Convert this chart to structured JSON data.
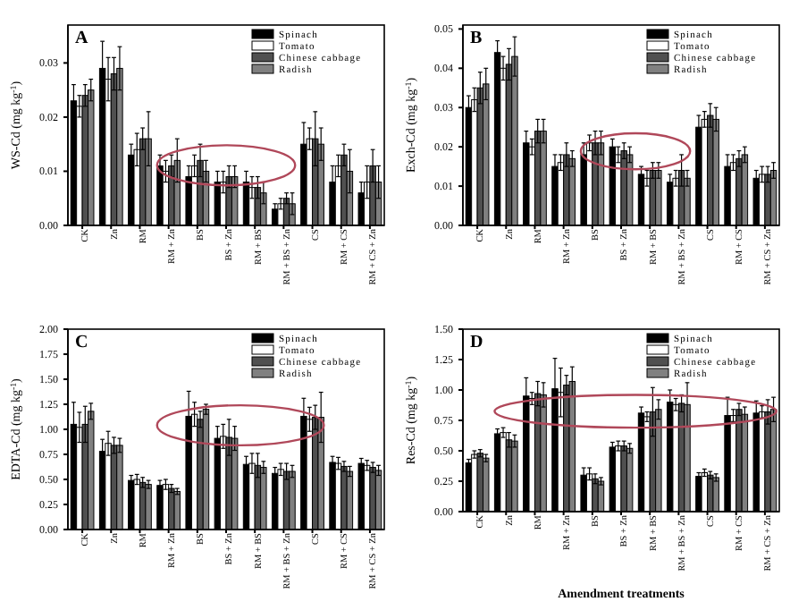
{
  "chart_data": [
    {
      "type": "bar",
      "title": "A",
      "ylabel": "WS-Cd (mg kg$^{-1}$)",
      "categories": [
        "CK",
        "Zn",
        "RM",
        "RM + Zn",
        "BS",
        "BS + Zn",
        "RM + BS",
        "RM + BS + Zn",
        "CS",
        "RM + CS",
        "RM + CS + Zn"
      ],
      "ylim": [
        0,
        0.037
      ],
      "yticks": [
        {
          "value": 0,
          "label": "0.00"
        },
        {
          "value": 0.01,
          "label": "0.01"
        },
        {
          "value": 0.02,
          "label": "0.02"
        },
        {
          "value": 0.03,
          "label": "0.03"
        }
      ],
      "legend": "top right",
      "series": [
        {
          "name": "Spinach",
          "color": "#000000",
          "values": [
            0.023,
            0.029,
            0.013,
            0.011,
            0.009,
            0.008,
            0.008,
            0.003,
            0.015,
            0.008,
            0.006
          ],
          "errors": [
            0.003,
            0.005,
            0.002,
            0.002,
            0.002,
            0.002,
            0.002,
            0.001,
            0.004,
            0.003,
            0.002
          ]
        },
        {
          "name": "Tomato",
          "color": "#ffffff",
          "values": [
            0.022,
            0.027,
            0.014,
            0.01,
            0.011,
            0.008,
            0.007,
            0.004,
            0.016,
            0.011,
            0.008
          ],
          "errors": [
            0.002,
            0.004,
            0.003,
            0.002,
            0.002,
            0.002,
            0.002,
            0.001,
            0.002,
            0.002,
            0.003
          ]
        },
        {
          "name": "Chinese cabbage",
          "color": "#505050",
          "values": [
            0.024,
            0.028,
            0.016,
            0.011,
            0.012,
            0.009,
            0.007,
            0.005,
            0.016,
            0.013,
            0.011
          ],
          "errors": [
            0.002,
            0.003,
            0.002,
            0.002,
            0.003,
            0.002,
            0.002,
            0.001,
            0.005,
            0.002,
            0.003
          ]
        },
        {
          "name": "Radish",
          "color": "#808080",
          "values": [
            0.025,
            0.029,
            0.016,
            0.012,
            0.01,
            0.009,
            0.006,
            0.004,
            0.015,
            0.01,
            0.008
          ],
          "errors": [
            0.002,
            0.004,
            0.005,
            0.004,
            0.002,
            0.002,
            0.002,
            0.002,
            0.003,
            0.004,
            0.003
          ]
        }
      ]
    },
    {
      "type": "bar",
      "title": "B",
      "ylabel": "Exch-Cd (mg kg$^{-1}$)",
      "categories": [
        "CK",
        "Zn",
        "RM",
        "RM + Zn",
        "BS",
        "BS + Zn",
        "RM + BS",
        "RM + BS + Zn",
        "CS",
        "RM + CS",
        "RM + CS + Zn"
      ],
      "ylim": [
        0,
        0.051
      ],
      "yticks": [
        {
          "value": 0,
          "label": "0.00"
        },
        {
          "value": 0.01,
          "label": "0.01"
        },
        {
          "value": 0.02,
          "label": "0.02"
        },
        {
          "value": 0.03,
          "label": "0.03"
        },
        {
          "value": 0.04,
          "label": "0.04"
        },
        {
          "value": 0.05,
          "label": "0.05"
        }
      ],
      "legend": "top right",
      "series": [
        {
          "name": "Spinach",
          "color": "#000000",
          "values": [
            0.03,
            0.044,
            0.021,
            0.015,
            0.018,
            0.02,
            0.013,
            0.011,
            0.025,
            0.015,
            0.012
          ],
          "errors": [
            0.003,
            0.003,
            0.003,
            0.003,
            0.003,
            0.002,
            0.002,
            0.002,
            0.003,
            0.003,
            0.002
          ]
        },
        {
          "name": "Tomato",
          "color": "#ffffff",
          "values": [
            0.032,
            0.04,
            0.02,
            0.016,
            0.021,
            0.018,
            0.012,
            0.012,
            0.027,
            0.016,
            0.013
          ],
          "errors": [
            0.003,
            0.003,
            0.002,
            0.002,
            0.002,
            0.002,
            0.002,
            0.002,
            0.002,
            0.002,
            0.002
          ]
        },
        {
          "name": "Chinese cabbage",
          "color": "#505050",
          "values": [
            0.035,
            0.041,
            0.024,
            0.018,
            0.021,
            0.019,
            0.014,
            0.014,
            0.028,
            0.017,
            0.013
          ],
          "errors": [
            0.004,
            0.004,
            0.003,
            0.003,
            0.003,
            0.002,
            0.002,
            0.004,
            0.003,
            0.002,
            0.002
          ]
        },
        {
          "name": "Radish",
          "color": "#808080",
          "values": [
            0.036,
            0.043,
            0.024,
            0.017,
            0.021,
            0.018,
            0.014,
            0.012,
            0.027,
            0.018,
            0.014
          ],
          "errors": [
            0.004,
            0.005,
            0.003,
            0.002,
            0.003,
            0.002,
            0.002,
            0.002,
            0.003,
            0.002,
            0.002
          ]
        }
      ]
    },
    {
      "type": "bar",
      "title": "C",
      "ylabel": "EDTA-Cd (mg kg$^{-1}$)",
      "categories": [
        "CK",
        "Zn",
        "RM",
        "RM + Zn",
        "BS",
        "BS + Zn",
        "RM + BS",
        "RM + BS + Zn",
        "CS",
        "RM + CS",
        "RM + CS + Zn"
      ],
      "ylim": [
        0,
        2
      ],
      "yticks": [
        {
          "value": 0,
          "label": "0.00"
        },
        {
          "value": 0.25,
          "label": "0.25"
        },
        {
          "value": 0.5,
          "label": "0.50"
        },
        {
          "value": 0.75,
          "label": "0.75"
        },
        {
          "value": 1,
          "label": "1.00"
        },
        {
          "value": 1.25,
          "label": "1.25"
        },
        {
          "value": 1.5,
          "label": "1.50"
        },
        {
          "value": 1.75,
          "label": "1.75"
        },
        {
          "value": 2,
          "label": "2.00"
        }
      ],
      "legend": "top right",
      "series": [
        {
          "name": "Spinach",
          "color": "#000000",
          "values": [
            1.05,
            0.78,
            0.49,
            0.44,
            1.13,
            0.91,
            0.65,
            0.56,
            1.13,
            0.67,
            0.66
          ],
          "errors": [
            0.22,
            0.12,
            0.05,
            0.05,
            0.25,
            0.12,
            0.08,
            0.06,
            0.18,
            0.06,
            0.05
          ]
        },
        {
          "name": "Tomato",
          "color": "#ffffff",
          "values": [
            1.02,
            0.86,
            0.5,
            0.45,
            1.15,
            0.93,
            0.66,
            0.6,
            1.1,
            0.66,
            0.64
          ],
          "errors": [
            0.15,
            0.12,
            0.05,
            0.05,
            0.12,
            0.12,
            0.1,
            0.06,
            0.12,
            0.06,
            0.05
          ]
        },
        {
          "name": "Chinese cabbage",
          "color": "#505050",
          "values": [
            1.05,
            0.84,
            0.47,
            0.41,
            1.1,
            0.92,
            0.64,
            0.58,
            1.12,
            0.63,
            0.62
          ],
          "errors": [
            0.18,
            0.08,
            0.05,
            0.04,
            0.08,
            0.18,
            0.12,
            0.08,
            0.12,
            0.05,
            0.05
          ]
        },
        {
          "name": "Radish",
          "color": "#808080",
          "values": [
            1.18,
            0.84,
            0.45,
            0.38,
            1.2,
            0.91,
            0.62,
            0.58,
            1.12,
            0.58,
            0.59
          ],
          "errors": [
            0.08,
            0.07,
            0.04,
            0.03,
            0.05,
            0.12,
            0.06,
            0.06,
            0.25,
            0.05,
            0.05
          ]
        }
      ]
    },
    {
      "type": "bar",
      "title": "D",
      "ylabel": "Res-Cd (mg kg$^{-1}$)",
      "xlabel": "Amendment   treatments",
      "categories": [
        "CK",
        "Zn",
        "RM",
        "RM + Zn",
        "BS",
        "BS + Zn",
        "RM + BS",
        "RM + BS + Zn",
        "CS",
        "RM + CS",
        "RM + CS + Zn"
      ],
      "ylim": [
        0,
        1.5
      ],
      "yticks": [
        {
          "value": 0,
          "label": "0.00"
        },
        {
          "value": 0.25,
          "label": "0.25"
        },
        {
          "value": 0.5,
          "label": "0.50"
        },
        {
          "value": 0.75,
          "label": "0.75"
        },
        {
          "value": 1,
          "label": "1.00"
        },
        {
          "value": 1.25,
          "label": "1.25"
        },
        {
          "value": 1.5,
          "label": "1.50"
        }
      ],
      "legend": "top right",
      "series": [
        {
          "name": "Spinach",
          "color": "#000000",
          "values": [
            0.4,
            0.64,
            0.95,
            1.01,
            0.3,
            0.53,
            0.81,
            0.9,
            0.29,
            0.79,
            0.81
          ],
          "errors": [
            0.03,
            0.04,
            0.15,
            0.25,
            0.06,
            0.04,
            0.05,
            0.1,
            0.03,
            0.15,
            0.1
          ]
        },
        {
          "name": "Tomato",
          "color": "#ffffff",
          "values": [
            0.47,
            0.65,
            0.93,
            0.98,
            0.31,
            0.54,
            0.78,
            0.88,
            0.32,
            0.79,
            0.82
          ],
          "errors": [
            0.03,
            0.04,
            0.05,
            0.2,
            0.05,
            0.04,
            0.04,
            0.05,
            0.03,
            0.05,
            0.05
          ]
        },
        {
          "name": "Chinese cabbage",
          "color": "#505050",
          "values": [
            0.48,
            0.59,
            0.97,
            1.04,
            0.27,
            0.54,
            0.82,
            0.89,
            0.3,
            0.84,
            0.82
          ],
          "errors": [
            0.03,
            0.06,
            0.1,
            0.08,
            0.04,
            0.04,
            0.2,
            0.07,
            0.03,
            0.05,
            0.1
          ]
        },
        {
          "name": "Radish",
          "color": "#808080",
          "values": [
            0.44,
            0.58,
            0.96,
            1.07,
            0.25,
            0.52,
            0.84,
            0.88,
            0.28,
            0.8,
            0.84
          ],
          "errors": [
            0.03,
            0.05,
            0.1,
            0.12,
            0.03,
            0.04,
            0.08,
            0.18,
            0.03,
            0.06,
            0.1
          ]
        }
      ]
    }
  ]
}
